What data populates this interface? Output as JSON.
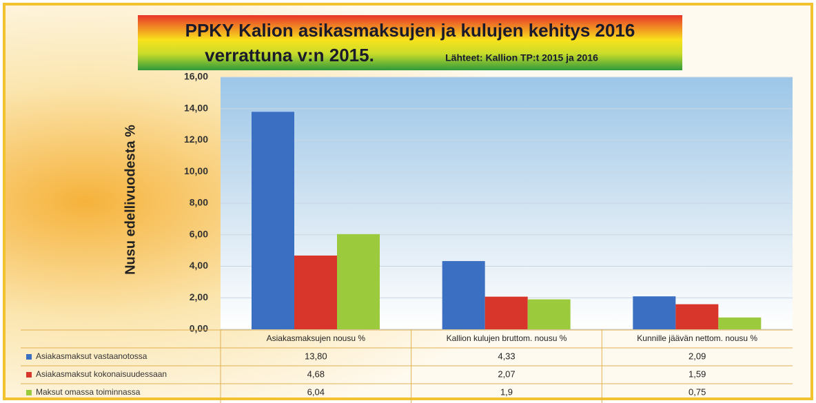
{
  "chart_data": {
    "type": "bar",
    "title": "PPKY Kalion asikasmaksujen ja kulujen kehitys 2016",
    "subtitle": "verrattuna v:n 2015.",
    "source": "Lähteet: Kallion TP:t 2015 ja 2016",
    "ylabel": "Nusu edellivuodesta %",
    "categories": [
      "Asiakasmaksujen nousu %",
      "Kallion kulujen bruttom. nousu %",
      "Kunnille jäävän nettom. nousu %"
    ],
    "series": [
      {
        "name": "Asiakasmaksut vastaanotossa",
        "color": "#3b6fc2",
        "values": [
          13.8,
          4.33,
          2.09
        ],
        "value_labels": [
          "13,80",
          "4,33",
          "2,09"
        ]
      },
      {
        "name": "Asiakasmaksut kokonaisuudessaan",
        "color": "#d8352b",
        "values": [
          4.68,
          2.07,
          1.59
        ],
        "value_labels": [
          "4,68",
          "2,07",
          "1,59"
        ]
      },
      {
        "name": "Maksut omassa toiminnassa",
        "color": "#9bcb3d",
        "values": [
          6.04,
          1.9,
          0.75
        ],
        "value_labels": [
          "6,04",
          "1,9",
          "0,75"
        ]
      }
    ],
    "ylim": [
      0,
      16
    ],
    "yticks": [
      {
        "value": 0,
        "label": "0,00"
      },
      {
        "value": 2,
        "label": "2,00"
      },
      {
        "value": 4,
        "label": "4,00"
      },
      {
        "value": 6,
        "label": "6,00"
      },
      {
        "value": 8,
        "label": "8,00"
      },
      {
        "value": 10,
        "label": "10,00"
      },
      {
        "value": 12,
        "label": "12,00"
      },
      {
        "value": 14,
        "label": "14,00"
      },
      {
        "value": 16,
        "label": "16,00"
      }
    ],
    "grid": true
  }
}
